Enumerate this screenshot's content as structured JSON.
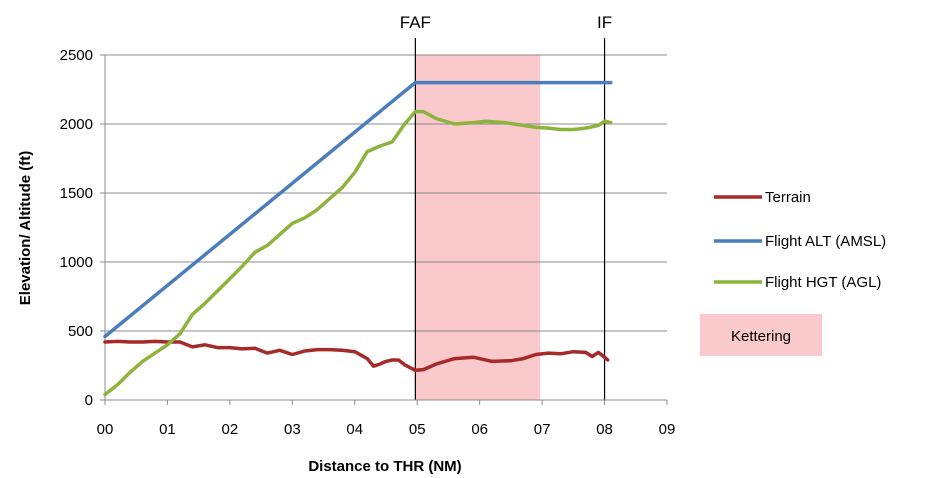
{
  "chart_data": {
    "type": "line",
    "xlabel": "Distance to THR (NM)",
    "ylabel": "Elevation/ Altitude (ft)",
    "x_ticks": [
      "00",
      "01",
      "02",
      "03",
      "04",
      "05",
      "06",
      "07",
      "08",
      "09"
    ],
    "xlim": [
      0,
      9
    ],
    "ylim": [
      0,
      2500
    ],
    "y_ticks": [
      "0",
      "500",
      "1000",
      "1500",
      "2000",
      "2500"
    ],
    "grid": "horizontal",
    "legend_position": "right",
    "markers": [
      {
        "label": "FAF",
        "x": 4.97
      },
      {
        "label": "IF",
        "x": 8.0
      }
    ],
    "shaded_region": {
      "label": "Kettering",
      "x_range": [
        4.97,
        6.97
      ],
      "color": "#f9c9cc"
    },
    "series": [
      {
        "name": "Terrain",
        "color": "#a52a2a",
        "points": [
          [
            0,
            420
          ],
          [
            0.2,
            425
          ],
          [
            0.4,
            420
          ],
          [
            0.6,
            420
          ],
          [
            0.8,
            425
          ],
          [
            1.0,
            420
          ],
          [
            1.2,
            420
          ],
          [
            1.4,
            385
          ],
          [
            1.6,
            400
          ],
          [
            1.8,
            380
          ],
          [
            2.0,
            380
          ],
          [
            2.2,
            370
          ],
          [
            2.4,
            375
          ],
          [
            2.6,
            340
          ],
          [
            2.8,
            360
          ],
          [
            3.0,
            330
          ],
          [
            3.2,
            355
          ],
          [
            3.4,
            365
          ],
          [
            3.6,
            365
          ],
          [
            3.8,
            360
          ],
          [
            4.0,
            350
          ],
          [
            4.2,
            300
          ],
          [
            4.3,
            245
          ],
          [
            4.4,
            260
          ],
          [
            4.5,
            280
          ],
          [
            4.6,
            290
          ],
          [
            4.7,
            290
          ],
          [
            4.8,
            255
          ],
          [
            4.97,
            215
          ],
          [
            5.1,
            220
          ],
          [
            5.3,
            260
          ],
          [
            5.6,
            300
          ],
          [
            5.9,
            310
          ],
          [
            6.2,
            280
          ],
          [
            6.5,
            285
          ],
          [
            6.7,
            300
          ],
          [
            6.9,
            330
          ],
          [
            7.1,
            340
          ],
          [
            7.3,
            335
          ],
          [
            7.5,
            350
          ],
          [
            7.7,
            345
          ],
          [
            7.8,
            315
          ],
          [
            7.9,
            345
          ],
          [
            8.0,
            310
          ],
          [
            8.05,
            290
          ]
        ]
      },
      {
        "name": "Flight ALT (AMSL)",
        "color": "#4a7ebb",
        "points": [
          [
            0,
            460
          ],
          [
            4.97,
            2300
          ],
          [
            8.1,
            2300
          ]
        ]
      },
      {
        "name": "Flight HGT (AGL)",
        "color": "#8cb43c",
        "points": [
          [
            0,
            40
          ],
          [
            0.2,
            110
          ],
          [
            0.4,
            200
          ],
          [
            0.6,
            280
          ],
          [
            0.8,
            340
          ],
          [
            1.0,
            400
          ],
          [
            1.2,
            480
          ],
          [
            1.4,
            620
          ],
          [
            1.6,
            700
          ],
          [
            1.8,
            790
          ],
          [
            2.0,
            880
          ],
          [
            2.2,
            970
          ],
          [
            2.4,
            1070
          ],
          [
            2.6,
            1120
          ],
          [
            2.8,
            1200
          ],
          [
            3.0,
            1280
          ],
          [
            3.2,
            1320
          ],
          [
            3.4,
            1380
          ],
          [
            3.6,
            1460
          ],
          [
            3.8,
            1540
          ],
          [
            4.0,
            1650
          ],
          [
            4.2,
            1800
          ],
          [
            4.4,
            1840
          ],
          [
            4.6,
            1870
          ],
          [
            4.8,
            2000
          ],
          [
            4.97,
            2090
          ],
          [
            5.1,
            2090
          ],
          [
            5.3,
            2040
          ],
          [
            5.6,
            2000
          ],
          [
            5.9,
            2010
          ],
          [
            6.1,
            2020
          ],
          [
            6.4,
            2010
          ],
          [
            6.7,
            1990
          ],
          [
            6.9,
            1975
          ],
          [
            7.1,
            1970
          ],
          [
            7.3,
            1960
          ],
          [
            7.5,
            1960
          ],
          [
            7.7,
            1970
          ],
          [
            7.8,
            1980
          ],
          [
            7.9,
            1990
          ],
          [
            8.0,
            2020
          ],
          [
            8.1,
            2010
          ]
        ]
      }
    ]
  }
}
